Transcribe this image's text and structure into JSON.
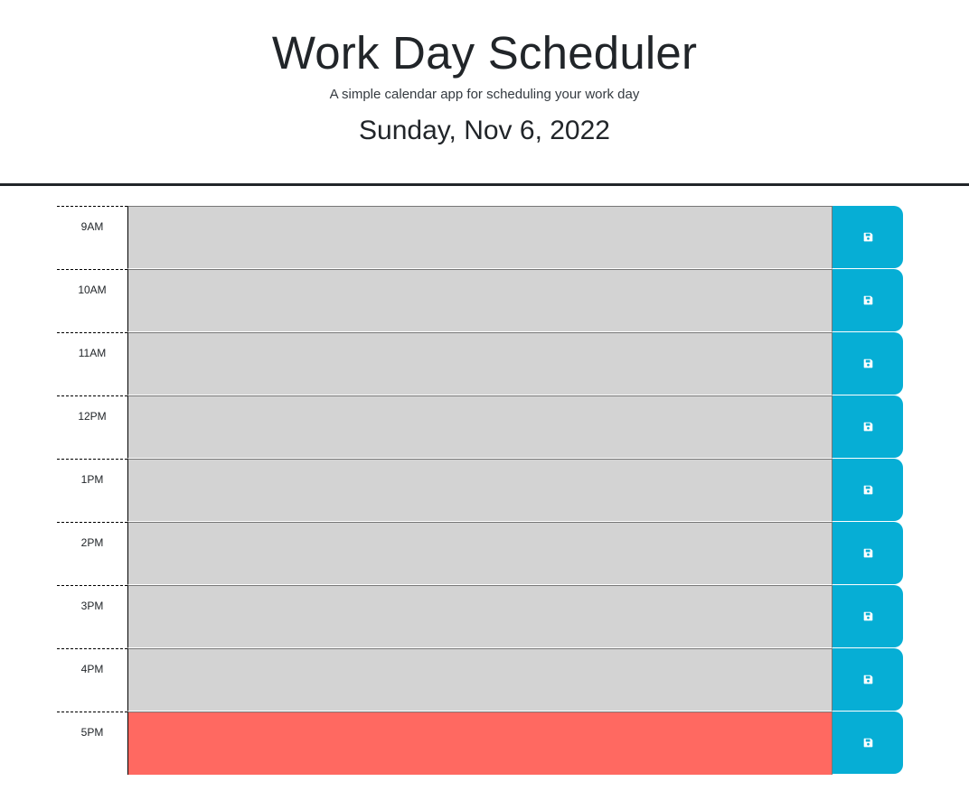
{
  "header": {
    "title": "Work Day Scheduler",
    "subtitle": "A simple calendar app for scheduling your work day",
    "current_date": "Sunday, Nov 6, 2022"
  },
  "colors": {
    "past": "#d3d3d3",
    "present": "#ff6961",
    "save_button": "#06aed5"
  },
  "save_icon": "floppy-disk-icon",
  "schedule": [
    {
      "hour": "9AM",
      "text": "",
      "state": "past"
    },
    {
      "hour": "10AM",
      "text": "",
      "state": "past"
    },
    {
      "hour": "11AM",
      "text": "",
      "state": "past"
    },
    {
      "hour": "12PM",
      "text": "",
      "state": "past"
    },
    {
      "hour": "1PM",
      "text": "",
      "state": "past"
    },
    {
      "hour": "2PM",
      "text": "",
      "state": "past"
    },
    {
      "hour": "3PM",
      "text": "",
      "state": "past"
    },
    {
      "hour": "4PM",
      "text": "",
      "state": "past"
    },
    {
      "hour": "5PM",
      "text": "",
      "state": "present"
    }
  ]
}
